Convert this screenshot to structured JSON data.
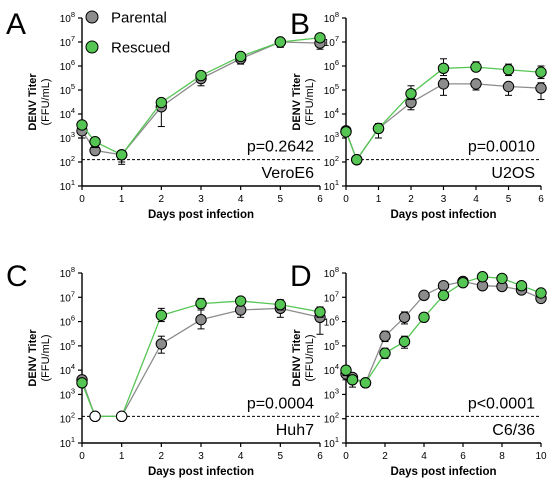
{
  "colors": {
    "parental": "#8c8c8c",
    "rescued": "#55c653",
    "axis": "#000000"
  },
  "legend": [
    {
      "name": "Parental",
      "color": "#8c8c8c"
    },
    {
      "name": "Rescued",
      "color": "#55c653"
    }
  ],
  "chart_data": [
    {
      "type": "line",
      "panel": "A",
      "ylabel": "DENV Titer",
      "ylabel_unit": "(FFU/mL)",
      "xlabel": "Days post infection",
      "y_scale": "log10",
      "ylim": [
        10,
        100000000
      ],
      "ytick_exponents": [
        "1",
        "2",
        "3",
        "4",
        "5",
        "6",
        "7",
        "8"
      ],
      "xlim": [
        0,
        6
      ],
      "xticks": [
        "0",
        "1",
        "2",
        "3",
        "4",
        "5",
        "6"
      ],
      "limit_of_detection": 125,
      "p_value": "p=0.2642",
      "cell_line": "VeroE6",
      "series": [
        {
          "name": "Parental",
          "color": "#8c8c8c",
          "x": [
            0,
            0.33,
            1,
            2,
            3,
            4,
            5,
            6
          ],
          "y": [
            2000,
            300,
            200,
            20000,
            300000,
            2000000,
            10000000,
            9000000
          ],
          "err_low": [
            1000,
            200,
            80,
            3000,
            150000,
            1200000,
            6000000,
            5000000
          ],
          "err_high": [
            3000,
            400,
            300,
            25000,
            500000,
            3000000,
            14000000,
            12000000
          ],
          "hollow": [
            false,
            false,
            false,
            false,
            false,
            false,
            false,
            false
          ]
        },
        {
          "name": "Rescued",
          "color": "#55c653",
          "x": [
            0,
            0.33,
            1,
            2,
            3,
            4,
            5,
            6
          ],
          "y": [
            3500,
            700,
            200,
            30000,
            400000,
            2500000,
            10000000,
            15000000
          ],
          "err_low": [
            3000,
            400,
            100,
            25000,
            300000,
            2000000,
            8000000,
            12000000
          ],
          "err_high": [
            4000,
            900,
            300,
            35000,
            500000,
            3000000,
            12000000,
            18000000
          ],
          "hollow": [
            false,
            false,
            false,
            false,
            false,
            false,
            false,
            false
          ]
        }
      ]
    },
    {
      "type": "line",
      "panel": "B",
      "ylabel": "DENV Titer",
      "ylabel_unit": "(FFU/mL)",
      "xlabel": "Days post infection",
      "y_scale": "log10",
      "ylim": [
        10,
        100000000
      ],
      "ytick_exponents": [
        "1",
        "2",
        "3",
        "4",
        "5",
        "6",
        "7",
        "8"
      ],
      "xlim": [
        0,
        6
      ],
      "xticks": [
        "0",
        "1",
        "2",
        "3",
        "4",
        "5",
        "6"
      ],
      "limit_of_detection": 125,
      "p_value": "p=0.0010",
      "cell_line": "U2OS",
      "series": [
        {
          "name": "Parental",
          "color": "#8c8c8c",
          "x": [
            0,
            0.33,
            1,
            2,
            3,
            4,
            5,
            6
          ],
          "y": [
            2000,
            125,
            2500,
            30000,
            180000,
            180000,
            140000,
            120000
          ],
          "err_low": [
            1500,
            125,
            1000,
            15000,
            60000,
            100000,
            60000,
            40000
          ],
          "err_high": [
            2500,
            125,
            4000,
            45000,
            300000,
            250000,
            200000,
            200000
          ],
          "hollow": [
            false,
            false,
            false,
            false,
            false,
            false,
            false,
            false
          ]
        },
        {
          "name": "Rescued",
          "color": "#55c653",
          "x": [
            0,
            0.33,
            1,
            2,
            3,
            4,
            5,
            6
          ],
          "y": [
            1800,
            125,
            2500,
            70000,
            800000,
            900000,
            700000,
            550000
          ],
          "err_low": [
            1500,
            125,
            2000,
            40000,
            400000,
            600000,
            400000,
            300000
          ],
          "err_high": [
            2200,
            125,
            3000,
            150000,
            2000000,
            1500000,
            1200000,
            1000000
          ],
          "hollow": [
            false,
            false,
            false,
            false,
            false,
            false,
            false,
            false
          ]
        }
      ]
    },
    {
      "type": "line",
      "panel": "C",
      "ylabel": "DENV Titer",
      "ylabel_unit": "(FFU/mL)",
      "xlabel": "Days post infection",
      "y_scale": "log10",
      "ylim": [
        10,
        100000000
      ],
      "ytick_exponents": [
        "1",
        "2",
        "3",
        "4",
        "5",
        "6",
        "7",
        "8"
      ],
      "xlim": [
        0,
        6
      ],
      "xticks": [
        "0",
        "1",
        "2",
        "3",
        "4",
        "5",
        "6"
      ],
      "limit_of_detection": 125,
      "p_value": "p=0.0004",
      "cell_line": "Huh7",
      "series": [
        {
          "name": "Parental",
          "color": "#8c8c8c",
          "x": [
            0,
            0.33,
            1,
            2,
            3,
            4,
            5,
            6
          ],
          "y": [
            4000,
            125,
            125,
            120000,
            1200000,
            3000000,
            3500000,
            1500000
          ],
          "err_low": [
            2000,
            125,
            125,
            50000,
            500000,
            1500000,
            1500000,
            300000
          ],
          "err_high": [
            6000,
            125,
            125,
            250000,
            3000000,
            5000000,
            6000000,
            3000000
          ],
          "hollow": [
            false,
            true,
            true,
            false,
            false,
            false,
            false,
            false
          ]
        },
        {
          "name": "Rescued",
          "color": "#55c653",
          "x": [
            0,
            0.33,
            1,
            2,
            3,
            4,
            5,
            6
          ],
          "y": [
            3000,
            125,
            125,
            1800000,
            5500000,
            7000000,
            5000000,
            2500000
          ],
          "err_low": [
            2500,
            125,
            125,
            1000000,
            3500000,
            5000000,
            3000000,
            1500000
          ],
          "err_high": [
            3500,
            125,
            125,
            3500000,
            9000000,
            9000000,
            8000000,
            4000000
          ],
          "hollow": [
            false,
            true,
            true,
            false,
            false,
            false,
            false,
            false
          ]
        }
      ]
    },
    {
      "type": "line",
      "panel": "D",
      "ylabel": "DENV Titer",
      "ylabel_unit": "(FFU/mL)",
      "xlabel": "Days post infection",
      "y_scale": "log10",
      "ylim": [
        10,
        100000000
      ],
      "ytick_exponents": [
        "1",
        "2",
        "3",
        "4",
        "5",
        "6",
        "7",
        "8"
      ],
      "xlim": [
        0,
        10
      ],
      "xticks": [
        "0",
        "2",
        "4",
        "6",
        "8",
        "10"
      ],
      "limit_of_detection": 125,
      "p_value": "p<0.0001",
      "cell_line": "C6/36",
      "series": [
        {
          "name": "Parental",
          "color": "#8c8c8c",
          "x": [
            0,
            0.33,
            1,
            2,
            3,
            4,
            5,
            6,
            7,
            8,
            9,
            10
          ],
          "y": [
            7000,
            5000,
            3000,
            250000,
            1500000,
            12000000,
            30000000,
            45000000,
            30000000,
            28000000,
            20000000,
            9000000
          ],
          "err_low": [
            4000,
            3000,
            2000,
            150000,
            800000,
            8000000,
            20000000,
            30000000,
            20000000,
            20000000,
            15000000,
            6000000
          ],
          "err_high": [
            10000,
            7000,
            4000,
            400000,
            2500000,
            18000000,
            40000000,
            60000000,
            45000000,
            40000000,
            28000000,
            13000000
          ],
          "hollow": [
            false,
            false,
            false,
            false,
            false,
            false,
            false,
            false,
            false,
            false,
            false,
            false
          ]
        },
        {
          "name": "Rescued",
          "color": "#55c653",
          "x": [
            0,
            0.33,
            1,
            2,
            3,
            4,
            5,
            6,
            7,
            8,
            9,
            10
          ],
          "y": [
            10000,
            4000,
            3000,
            50000,
            150000,
            1500000,
            12000000,
            40000000,
            70000000,
            60000000,
            30000000,
            15000000
          ],
          "err_low": [
            6000,
            2000,
            2000,
            30000,
            80000,
            1000000,
            8000000,
            30000000,
            50000000,
            40000000,
            20000000,
            10000000
          ],
          "err_high": [
            15000,
            6000,
            4500,
            80000,
            250000,
            2200000,
            16000000,
            55000000,
            90000000,
            80000000,
            40000000,
            20000000
          ],
          "hollow": [
            false,
            false,
            false,
            false,
            false,
            false,
            false,
            false,
            false,
            false,
            false,
            false
          ]
        }
      ]
    }
  ]
}
